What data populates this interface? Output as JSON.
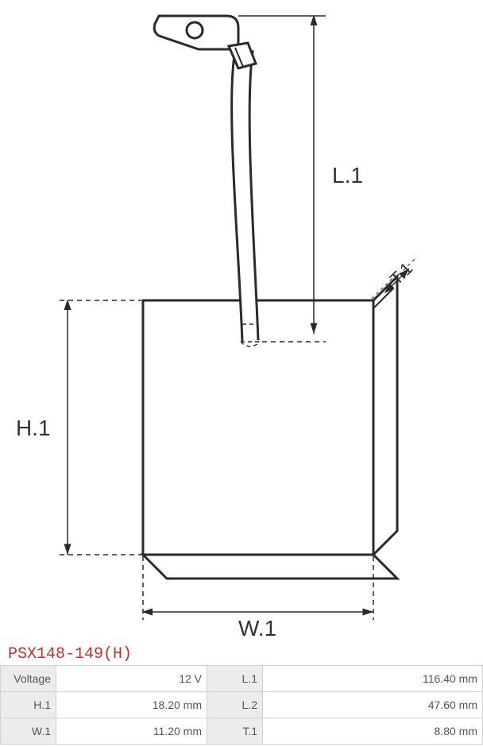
{
  "title": "PSX148-149(H)",
  "diagram": {
    "type": "technical-drawing",
    "labels": {
      "L1": "L.1",
      "H1": "H.1",
      "W1": "W.1",
      "T1": "T.1"
    },
    "stroke": "#2a2a2a",
    "stroke_width": 3,
    "dash": "6,5",
    "dim_fontsize": 28
  },
  "table": {
    "rows": [
      {
        "k1": "Voltage",
        "v1": "12 V",
        "k2": "L.1",
        "v2": "116.40 mm"
      },
      {
        "k1": "H.1",
        "v1": "18.20 mm",
        "k2": "L.2",
        "v2": "47.60 mm"
      },
      {
        "k1": "W.1",
        "v1": "11.20 mm",
        "k2": "T.1",
        "v2": "8.80 mm"
      }
    ],
    "label_bg": "#ececec",
    "border_color": "#d0d0d0"
  }
}
